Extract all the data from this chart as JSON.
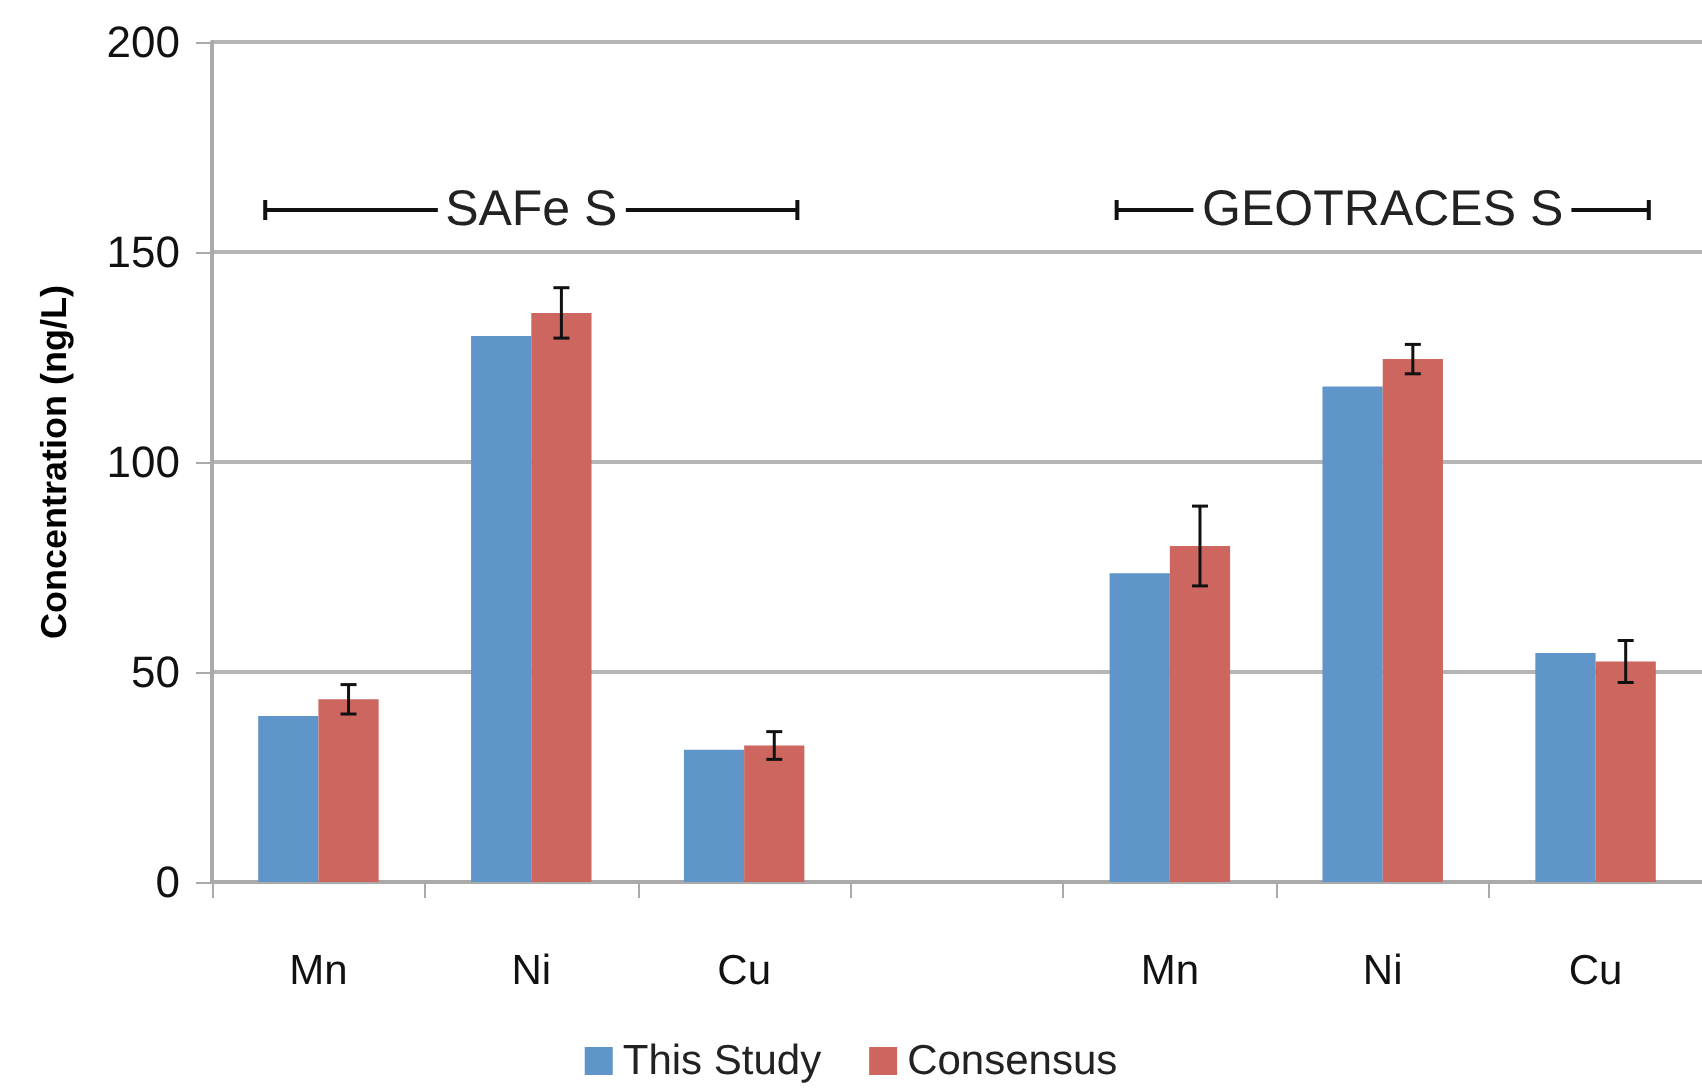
{
  "chart_data": {
    "type": "bar",
    "ylabel": "Concentration (ng/L)",
    "categories": [
      "Mn",
      "Ni",
      "Cu",
      null,
      "Mn",
      "Ni",
      "Cu"
    ],
    "series": [
      {
        "name": "This Study",
        "color": "#6095c9",
        "values": [
          39.5,
          130,
          31.5,
          null,
          73.5,
          118,
          54.5
        ]
      },
      {
        "name": "Consensus",
        "color": "#cd665f",
        "values": [
          43.5,
          135.5,
          32.5,
          null,
          80,
          124.5,
          52.5
        ],
        "errors": [
          3.5,
          6,
          3.3,
          null,
          9.5,
          3.5,
          5
        ]
      }
    ],
    "annotations": [
      "SAFe S",
      "GEOTRACES S"
    ],
    "ylim": [
      0,
      200
    ],
    "yticks": [
      0,
      50,
      100,
      150,
      200
    ],
    "grid": "y",
    "legend": "bottom"
  }
}
